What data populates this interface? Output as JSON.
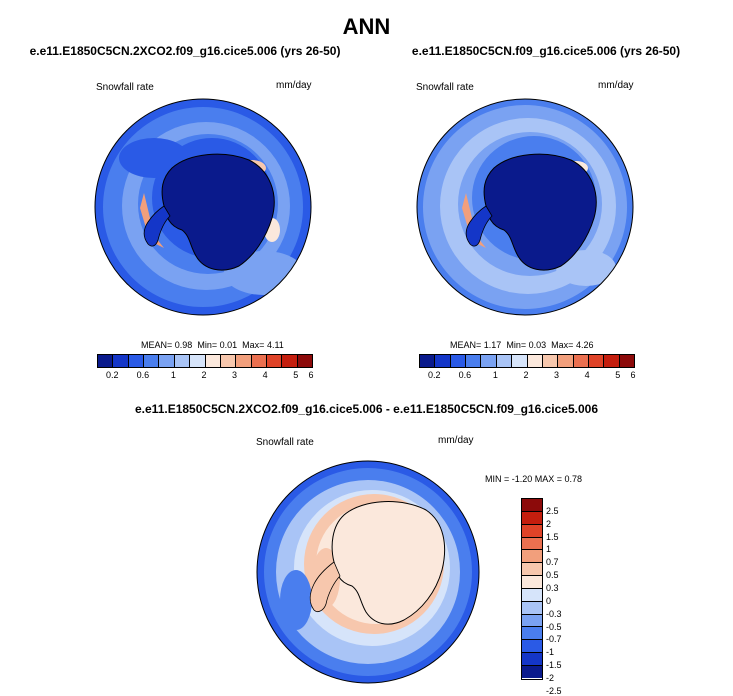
{
  "title": "ANN",
  "panels": [
    {
      "title": "e.e11.E1850C5CN.2XCO2.f09_g16.cice5.006 (yrs 26-50)",
      "variable": "Snowfall rate",
      "units": "mm/day",
      "stats": {
        "mean_label": "MEAN=",
        "mean": "0.98",
        "min_label": "Min=",
        "min": "0.01",
        "max_label": "Max=",
        "max": "4.11"
      }
    },
    {
      "title": "e.e11.E1850C5CN.f09_g16.cice5.006 (yrs 26-50)",
      "variable": "Snowfall rate",
      "units": "mm/day",
      "stats": {
        "mean_label": "MEAN=",
        "mean": "1.17",
        "min_label": "Min=",
        "min": "0.03",
        "max_label": "Max=",
        "max": "4.26"
      }
    }
  ],
  "diff": {
    "title": "e.e11.E1850C5CN.2XCO2.f09_g16.cice5.006 - e.e11.E1850C5CN.f09_g16.cice5.006",
    "variable": "Snowfall rate",
    "units": "mm/day",
    "minmax": "MIN = -1.20 MAX = 0.78"
  },
  "colorbar": {
    "colors": [
      "#0a1a8c",
      "#1436c8",
      "#2a5ae6",
      "#4a7eee",
      "#7aa2f2",
      "#a9c4f6",
      "#d6e4fa",
      "#fbe8dc",
      "#f7c7ad",
      "#f29f7c",
      "#eb7050",
      "#df4328",
      "#c41e0e",
      "#8c0a0a"
    ],
    "ticks": [
      "0.2",
      "0.6",
      "1",
      "2",
      "3",
      "4",
      "5",
      "6"
    ]
  },
  "diff_colorbar": {
    "colors": [
      "#8c0a0a",
      "#c41e0e",
      "#df4328",
      "#eb7050",
      "#f29f7c",
      "#f7c7ad",
      "#fbe8dc",
      "#d6e4fa",
      "#a9c4f6",
      "#7aa2f2",
      "#4a7eee",
      "#2a5ae6",
      "#1436c8",
      "#0a1a8c"
    ],
    "ticks": [
      "2.5",
      "2",
      "1.5",
      "1",
      "0.7",
      "0.5",
      "0.3",
      "0",
      "-0.3",
      "-0.5",
      "-0.7",
      "-1",
      "-1.5",
      "-2",
      "-2.5"
    ]
  }
}
